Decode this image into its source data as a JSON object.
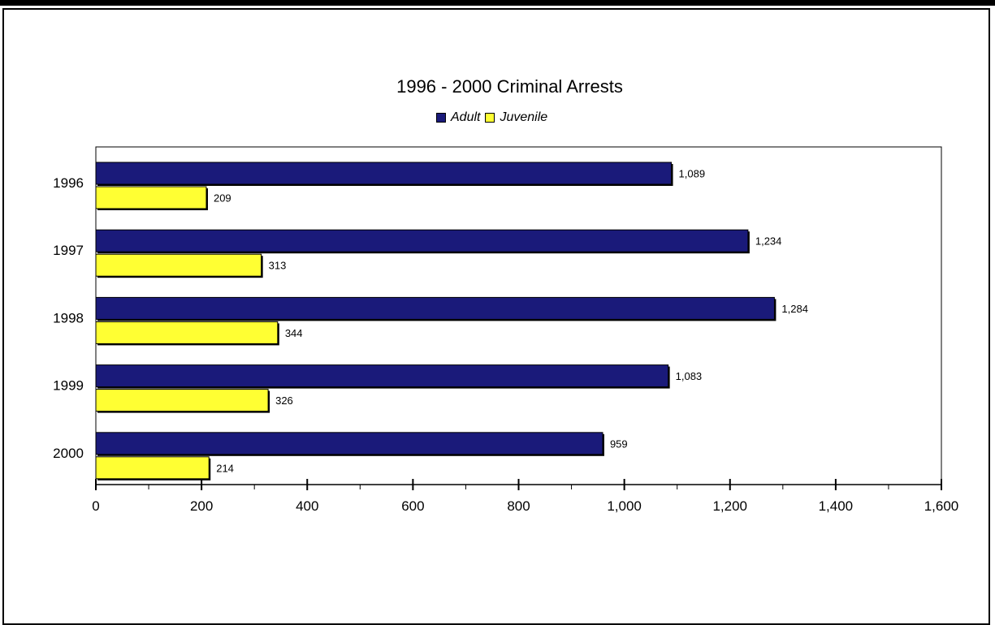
{
  "chart_data": {
    "type": "bar",
    "orientation": "horizontal",
    "title": "1996 - 2000 Criminal Arrests",
    "categories": [
      "1996",
      "1997",
      "1998",
      "1999",
      "2000"
    ],
    "series": [
      {
        "name": "Adult",
        "color": "#1a1a7a",
        "values": [
          1089,
          1234,
          1284,
          1083,
          959
        ],
        "labels": [
          "1,089",
          "1,234",
          "1,284",
          "1,083",
          "959"
        ]
      },
      {
        "name": "Juvenile",
        "color": "#ffff33",
        "values": [
          209,
          313,
          344,
          326,
          214
        ],
        "labels": [
          "209",
          "313",
          "344",
          "326",
          "214"
        ]
      }
    ],
    "xlim": [
      0,
      1600
    ],
    "xticks": [
      0,
      200,
      400,
      600,
      800,
      1000,
      1200,
      1400,
      1600
    ],
    "xtick_labels": [
      "0",
      "200",
      "400",
      "600",
      "800",
      "1,000",
      "1,200",
      "1,400",
      "1,600"
    ],
    "legend_position": "top-center",
    "grid": false
  }
}
